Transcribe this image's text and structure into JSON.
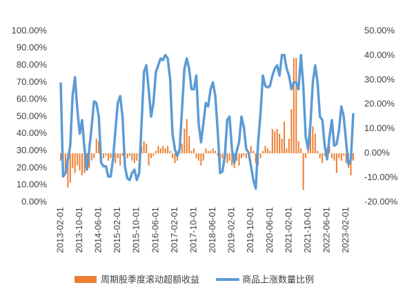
{
  "chart_data": {
    "type": "bar-line",
    "categories": [
      "2013-02-01",
      null,
      null,
      null,
      null,
      null,
      null,
      null,
      "2013-10-01",
      null,
      null,
      null,
      null,
      null,
      null,
      null,
      "2014-06-01",
      null,
      null,
      null,
      null,
      null,
      null,
      null,
      "2015-02-01",
      null,
      null,
      null,
      null,
      null,
      null,
      null,
      "2015-10-01",
      null,
      null,
      null,
      null,
      null,
      null,
      null,
      "2016-06-01",
      null,
      null,
      null,
      null,
      null,
      null,
      null,
      "2017-02-01",
      null,
      null,
      null,
      null,
      null,
      null,
      null,
      "2017-10-01",
      null,
      null,
      null,
      null,
      null,
      null,
      null,
      "2018-06-01",
      null,
      null,
      null,
      null,
      null,
      null,
      null,
      "2019-02-01",
      null,
      null,
      null,
      null,
      null,
      null,
      null,
      "2019-10-01",
      null,
      null,
      null,
      null,
      null,
      null,
      null,
      "2020-06-01",
      null,
      null,
      null,
      null,
      null,
      null,
      null,
      "2021-02-01",
      null,
      null,
      null,
      null,
      null,
      null,
      null,
      "2021-10-01",
      null,
      null,
      null,
      null,
      null,
      null,
      null,
      "2022-06-01",
      null,
      null,
      null,
      null,
      null,
      null,
      null,
      "2023-02-01",
      null,
      null,
      null
    ],
    "series": [
      {
        "name": "周期股季度滚动超额收益",
        "kind": "bar",
        "axis": "y2",
        "color": "#ed7d31",
        "values": [
          -3,
          -4,
          -7,
          -14,
          -12,
          -6,
          -8,
          -5,
          -7,
          -9,
          -8,
          -7,
          -6,
          -3,
          -2,
          6,
          5,
          2,
          -2,
          -1,
          -3,
          -2,
          -1,
          -4,
          -2,
          -5,
          -1,
          1,
          -2,
          -1,
          -3,
          -4,
          -3,
          -1,
          3,
          5,
          4,
          -5,
          -2,
          -1,
          1,
          3,
          2,
          3,
          2,
          3,
          1,
          -2,
          -4,
          -3,
          2,
          4,
          10,
          14,
          7,
          1,
          2,
          -2,
          -3,
          -5,
          -3,
          2,
          1,
          1,
          2,
          1,
          -1,
          -3,
          -2,
          -1,
          -4,
          -3,
          -5,
          -6,
          -3,
          -5,
          -2,
          -1,
          -2,
          -1,
          3,
          1,
          -4,
          -5,
          -2,
          1,
          3,
          2,
          1,
          10,
          9,
          10,
          8,
          6,
          13,
          2,
          6,
          18,
          39,
          39,
          5,
          2,
          -15,
          -2,
          3,
          10,
          11,
          8,
          1,
          -2,
          -4,
          -1,
          2,
          3,
          -2,
          -3,
          -8,
          -2,
          -3,
          -1,
          -4,
          -6,
          -9,
          -3
        ]
      },
      {
        "name": "商品上涨数量比例",
        "kind": "line",
        "axis": "y",
        "color": "#5b9bd5",
        "values": [
          70,
          15,
          17,
          25,
          33,
          62,
          73,
          54,
          40,
          48,
          31,
          19,
          31,
          44,
          59,
          58,
          50,
          23,
          21,
          21,
          15,
          15,
          25,
          42,
          58,
          62,
          50,
          21,
          14,
          13,
          17,
          19,
          13,
          17,
          46,
          76,
          80,
          66,
          50,
          58,
          76,
          80,
          84,
          83,
          86,
          84,
          72,
          40,
          31,
          27,
          31,
          54,
          78,
          84,
          78,
          66,
          66,
          74,
          46,
          35,
          46,
          58,
          56,
          66,
          70,
          62,
          42,
          17,
          18,
          27,
          48,
          50,
          31,
          23,
          30,
          35,
          50,
          44,
          31,
          29,
          21,
          13,
          8,
          35,
          52,
          74,
          68,
          67,
          68,
          74,
          78,
          80,
          74,
          86,
          86,
          78,
          74,
          66,
          70,
          70,
          66,
          86,
          68,
          38,
          31,
          46,
          70,
          80,
          70,
          50,
          48,
          33,
          25,
          38,
          48,
          33,
          34,
          42,
          56,
          50,
          35,
          22,
          25,
          52
        ]
      }
    ],
    "ylim": [
      0,
      100
    ],
    "yticks": [
      {
        "value": 0,
        "label": "0.00%"
      },
      {
        "value": 10,
        "label": "10.00%"
      },
      {
        "value": 20,
        "label": "20.00%"
      },
      {
        "value": 30,
        "label": "30.00%"
      },
      {
        "value": 40,
        "label": "40.00%"
      },
      {
        "value": 50,
        "label": "50.00%"
      },
      {
        "value": 60,
        "label": "60.00%"
      },
      {
        "value": 70,
        "label": "70.00%"
      },
      {
        "value": 80,
        "label": "80.00%"
      },
      {
        "value": 90,
        "label": "90.00%"
      },
      {
        "value": 100,
        "label": "100.00%"
      }
    ],
    "y2lim": [
      -20,
      50
    ],
    "y2ticks": [
      {
        "value": -20,
        "label": "-20.00%"
      },
      {
        "value": -10,
        "label": "-10.00%"
      },
      {
        "value": 0,
        "label": "0.00%"
      },
      {
        "value": 10,
        "label": "10.00%"
      },
      {
        "value": 20,
        "label": "20.00%"
      },
      {
        "value": 30,
        "label": "30.00%"
      },
      {
        "value": 40,
        "label": "40.00%"
      },
      {
        "value": 50,
        "label": "50.00%"
      }
    ],
    "legend": "bottom"
  }
}
